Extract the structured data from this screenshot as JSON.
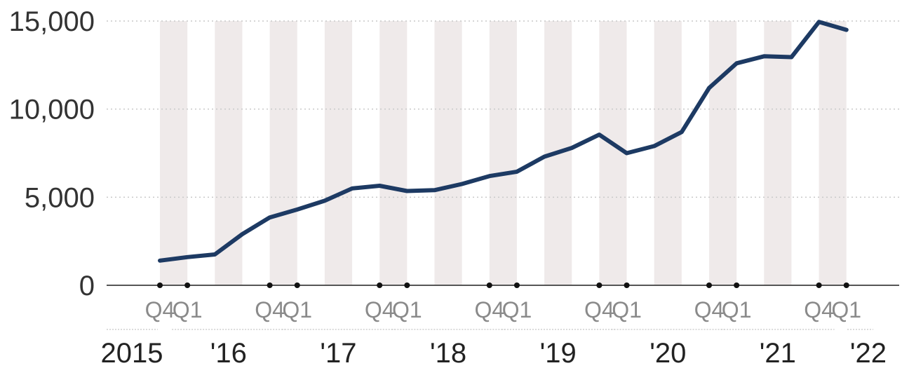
{
  "chart_data": {
    "type": "line",
    "x": [
      "2015 Q4",
      "2016 Q1",
      "2016 Q2",
      "2016 Q3",
      "2016 Q4",
      "2017 Q1",
      "2017 Q2",
      "2017 Q3",
      "2017 Q4",
      "2018 Q1",
      "2018 Q2",
      "2018 Q3",
      "2018 Q4",
      "2019 Q1",
      "2019 Q2",
      "2019 Q3",
      "2019 Q4",
      "2020 Q1",
      "2020 Q2",
      "2020 Q3",
      "2020 Q4",
      "2021 Q1",
      "2021 Q2",
      "2021 Q3",
      "2021 Q4",
      "2022 Q1"
    ],
    "series": [
      {
        "values": [
          1400,
          1600,
          1750,
          2900,
          3850,
          4300,
          4800,
          5500,
          5650,
          5350,
          5400,
          5750,
          6200,
          6450,
          7300,
          7800,
          8550,
          7500,
          7900,
          8700,
          11200,
          12600,
          13000,
          12950,
          14950,
          14500
        ],
        "color": "#1d3a63"
      }
    ],
    "ylim": [
      0,
      15000
    ],
    "yticks": [
      "0",
      "5,000",
      "10,000",
      "15,000"
    ],
    "quarter_labels": [
      "Q4",
      "Q1",
      "Q4",
      "Q1",
      "Q4",
      "Q1",
      "Q4",
      "Q1",
      "Q4",
      "Q1",
      "Q4",
      "Q1",
      "Q4",
      "Q1"
    ],
    "year_labels": [
      "2015",
      "'16",
      "'17",
      "'18",
      "'19",
      "'20",
      "'21",
      "'22"
    ],
    "grid": true,
    "band_color": "#efeaea",
    "axis_color": "#555555",
    "text_color": "#333333"
  }
}
